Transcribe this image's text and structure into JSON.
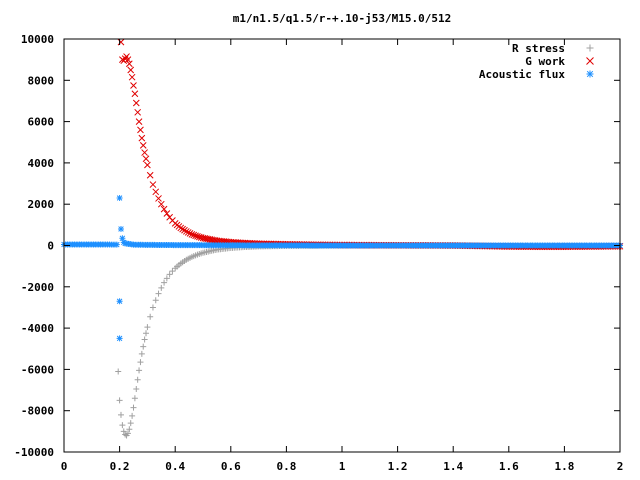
{
  "chart_data": {
    "type": "scatter",
    "title": "m1/n1.5/q1.5/r-+.10-j53/M15.0/512",
    "xlabel": "",
    "ylabel": "",
    "xlim": [
      0,
      2
    ],
    "ylim": [
      -10000,
      10000
    ],
    "x_ticks": [
      "0",
      "0.2",
      "0.4",
      "0.6",
      "0.8",
      "1",
      "1.2",
      "1.4",
      "1.6",
      "1.8",
      "2"
    ],
    "y_ticks": [
      "10000",
      "8000",
      "6000",
      "4000",
      "2000",
      "0",
      "-2000",
      "-4000",
      "-6000",
      "-8000",
      "-10000"
    ],
    "grid": false,
    "legend_position": "top-right",
    "series": [
      {
        "name": "R stress",
        "marker": "plus",
        "color": "#a0a0a0",
        "points": [
          [
            0.195,
            -6100
          ],
          [
            0.2,
            -7500
          ],
          [
            0.205,
            -8200
          ],
          [
            0.21,
            -8700
          ],
          [
            0.215,
            -9000
          ],
          [
            0.22,
            -9150
          ],
          [
            0.225,
            -9200
          ],
          [
            0.23,
            -9100
          ],
          [
            0.235,
            -8900
          ],
          [
            0.24,
            -8600
          ],
          [
            0.245,
            -8250
          ],
          [
            0.25,
            -7850
          ],
          [
            0.255,
            -7400
          ],
          [
            0.26,
            -6950
          ],
          [
            0.265,
            -6500
          ],
          [
            0.27,
            -6050
          ],
          [
            0.275,
            -5650
          ],
          [
            0.28,
            -5250
          ],
          [
            0.285,
            -4900
          ],
          [
            0.29,
            -4550
          ],
          [
            0.295,
            -4250
          ],
          [
            0.3,
            -3950
          ],
          [
            0.31,
            -3450
          ],
          [
            0.32,
            -3000
          ],
          [
            0.33,
            -2650
          ],
          [
            0.34,
            -2330
          ],
          [
            0.35,
            -2050
          ],
          [
            0.36,
            -1800
          ],
          [
            0.37,
            -1590
          ],
          [
            0.38,
            -1400
          ],
          [
            0.39,
            -1240
          ],
          [
            0.4,
            -1100
          ],
          [
            0.42,
            -870
          ],
          [
            0.44,
            -690
          ],
          [
            0.46,
            -550
          ],
          [
            0.48,
            -440
          ],
          [
            0.5,
            -350
          ],
          [
            0.55,
            -200
          ],
          [
            0.6,
            -120
          ],
          [
            0.65,
            -75
          ],
          [
            0.7,
            -45
          ],
          [
            0.8,
            -20
          ],
          [
            0.9,
            -10
          ],
          [
            1.0,
            -5
          ],
          [
            1.2,
            -2
          ],
          [
            1.4,
            -1
          ],
          [
            1.6,
            0
          ],
          [
            1.8,
            0
          ],
          [
            2.0,
            0
          ]
        ]
      },
      {
        "name": "G work",
        "marker": "cross",
        "color": "#e00000",
        "points": [
          [
            0.205,
            9850
          ],
          [
            0.21,
            9000
          ],
          [
            0.215,
            8950
          ],
          [
            0.22,
            9050
          ],
          [
            0.225,
            9150
          ],
          [
            0.23,
            9000
          ],
          [
            0.235,
            8800
          ],
          [
            0.24,
            8500
          ],
          [
            0.245,
            8150
          ],
          [
            0.25,
            7750
          ],
          [
            0.255,
            7350
          ],
          [
            0.26,
            6900
          ],
          [
            0.265,
            6450
          ],
          [
            0.27,
            6000
          ],
          [
            0.275,
            5600
          ],
          [
            0.28,
            5200
          ],
          [
            0.285,
            4850
          ],
          [
            0.29,
            4500
          ],
          [
            0.295,
            4200
          ],
          [
            0.3,
            3900
          ],
          [
            0.31,
            3400
          ],
          [
            0.32,
            2950
          ],
          [
            0.33,
            2600
          ],
          [
            0.34,
            2280
          ],
          [
            0.35,
            2000
          ],
          [
            0.36,
            1760
          ],
          [
            0.37,
            1550
          ],
          [
            0.38,
            1370
          ],
          [
            0.39,
            1210
          ],
          [
            0.4,
            1070
          ],
          [
            0.42,
            850
          ],
          [
            0.44,
            680
          ],
          [
            0.46,
            540
          ],
          [
            0.48,
            440
          ],
          [
            0.5,
            360
          ],
          [
            0.55,
            230
          ],
          [
            0.6,
            160
          ],
          [
            0.65,
            120
          ],
          [
            0.7,
            90
          ],
          [
            0.8,
            60
          ],
          [
            0.9,
            40
          ],
          [
            1.0,
            25
          ],
          [
            1.2,
            10
          ],
          [
            1.4,
            0
          ],
          [
            1.6,
            -50
          ],
          [
            1.7,
            -60
          ],
          [
            1.8,
            -60
          ],
          [
            1.9,
            -50
          ],
          [
            2.0,
            -40
          ]
        ]
      },
      {
        "name": "Acoustic flux",
        "marker": "star",
        "color": "#1e90ff",
        "points": [
          [
            0.0,
            50
          ],
          [
            0.05,
            50
          ],
          [
            0.1,
            50
          ],
          [
            0.15,
            50
          ],
          [
            0.19,
            40
          ],
          [
            0.2,
            -4500
          ],
          [
            0.2,
            -2700
          ],
          [
            0.2,
            2300
          ],
          [
            0.205,
            800
          ],
          [
            0.21,
            350
          ],
          [
            0.215,
            150
          ],
          [
            0.22,
            100
          ],
          [
            0.25,
            40
          ],
          [
            0.3,
            30
          ],
          [
            0.4,
            20
          ],
          [
            0.5,
            15
          ],
          [
            0.6,
            10
          ],
          [
            0.8,
            5
          ],
          [
            1.0,
            0
          ],
          [
            1.2,
            0
          ],
          [
            1.4,
            0
          ],
          [
            1.6,
            0
          ],
          [
            1.8,
            0
          ],
          [
            2.0,
            0
          ]
        ]
      }
    ]
  }
}
